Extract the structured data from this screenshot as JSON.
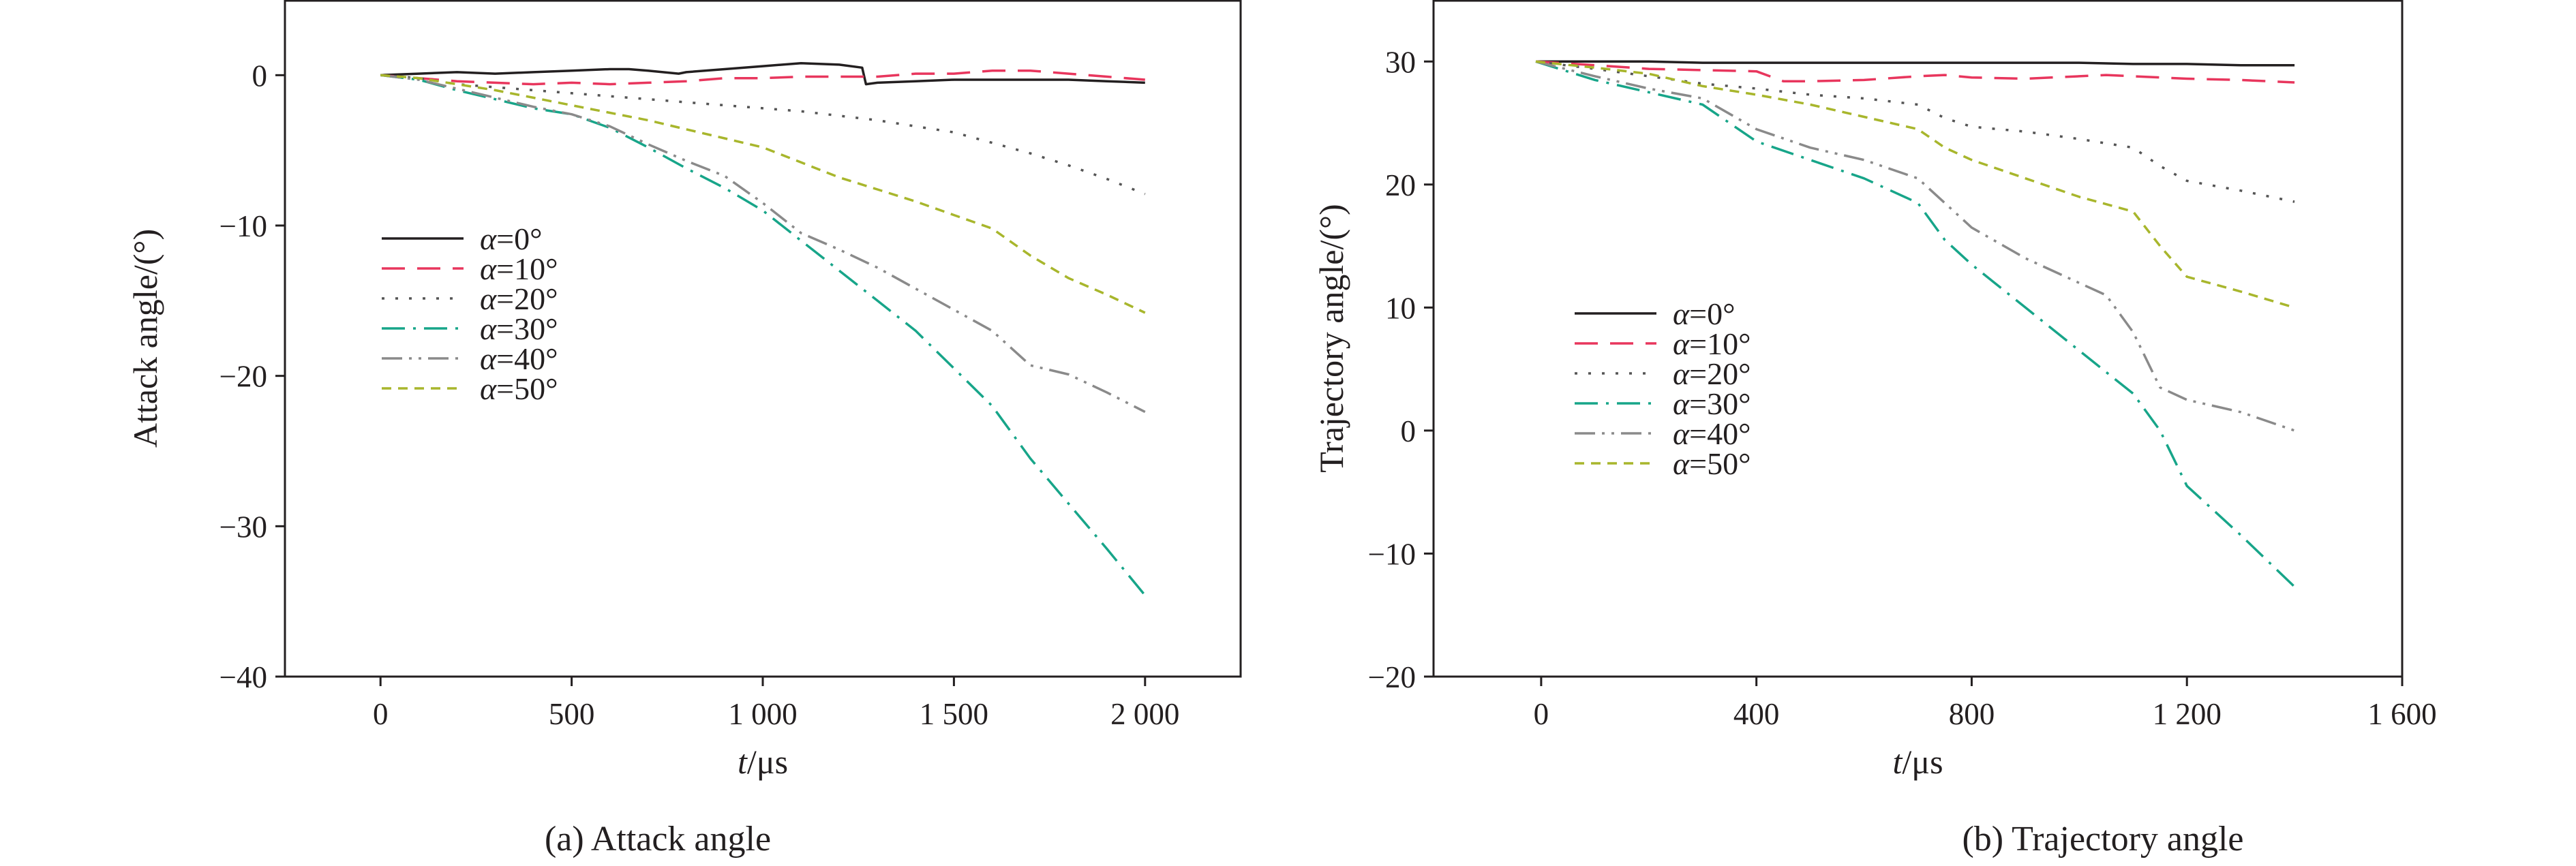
{
  "chart_data": [
    {
      "type": "line",
      "caption": "(a) Attack angle",
      "xlabel_var": "t",
      "xlabel_unit": "/μs",
      "ylabel": "Attack angle/(°)",
      "xlim": [
        -250,
        2250
      ],
      "ylim": [
        -40,
        5
      ],
      "xticks": [
        0,
        500,
        1000,
        1500,
        2000
      ],
      "xtick_labels": [
        "0",
        "500",
        "1 000",
        "1 500",
        "2 000"
      ],
      "yticks": [
        0,
        -10,
        -20,
        -30,
        -40
      ],
      "ytick_labels": [
        "0",
        "−10",
        "−20",
        "−30",
        "−40"
      ],
      "legend_position": "left",
      "series": [
        {
          "name": "α=0°",
          "sym": "α",
          "rest": "=0°",
          "color": "#231f20",
          "dash": "solid",
          "x": [
            0,
            100,
            200,
            300,
            400,
            500,
            600,
            650,
            700,
            780,
            800,
            900,
            1000,
            1100,
            1200,
            1260,
            1270,
            1300,
            1400,
            1500,
            1600,
            1700,
            1800,
            1900,
            2000
          ],
          "y": [
            0,
            0.1,
            0.2,
            0.1,
            0.2,
            0.3,
            0.4,
            0.4,
            0.3,
            0.1,
            0.2,
            0.4,
            0.6,
            0.8,
            0.7,
            0.5,
            -0.6,
            -0.5,
            -0.4,
            -0.3,
            -0.3,
            -0.3,
            -0.3,
            -0.4,
            -0.5
          ]
        },
        {
          "name": "α=10°",
          "sym": "α",
          "rest": "=10°",
          "color": "#e8365d",
          "dash": "dashed",
          "x": [
            0,
            100,
            200,
            300,
            400,
            500,
            600,
            700,
            800,
            900,
            1000,
            1100,
            1200,
            1300,
            1400,
            1500,
            1600,
            1700,
            1800,
            1900,
            2000
          ],
          "y": [
            0,
            -0.2,
            -0.4,
            -0.5,
            -0.6,
            -0.5,
            -0.6,
            -0.5,
            -0.4,
            -0.2,
            -0.2,
            -0.1,
            -0.1,
            -0.1,
            0.1,
            0.1,
            0.3,
            0.3,
            0.1,
            -0.1,
            -0.3
          ]
        },
        {
          "name": "α=20°",
          "sym": "α",
          "rest": "=20°",
          "color": "#555555",
          "dash": "dotted",
          "x": [
            0,
            100,
            200,
            300,
            400,
            500,
            600,
            700,
            800,
            900,
            1000,
            1100,
            1200,
            1300,
            1400,
            1500,
            1600,
            1700,
            1800,
            1900,
            2000
          ],
          "y": [
            0,
            -0.2,
            -0.6,
            -0.8,
            -1.0,
            -1.2,
            -1.4,
            -1.6,
            -1.8,
            -2.0,
            -2.2,
            -2.4,
            -2.7,
            -3.0,
            -3.4,
            -3.8,
            -4.5,
            -5.2,
            -6.0,
            -6.9,
            -7.9
          ]
        },
        {
          "name": "α=30°",
          "sym": "α",
          "rest": "=30°",
          "color": "#17a589",
          "dash": "dashdot",
          "x": [
            0,
            100,
            200,
            300,
            400,
            500,
            600,
            700,
            800,
            900,
            1000,
            1100,
            1200,
            1300,
            1400,
            1500,
            1600,
            1700,
            1800,
            1900,
            2000
          ],
          "y": [
            0,
            -0.3,
            -1.0,
            -1.6,
            -2.2,
            -2.6,
            -3.5,
            -4.8,
            -6.2,
            -7.5,
            -9.0,
            -11.0,
            -13.0,
            -15.0,
            -17.0,
            -19.5,
            -22.0,
            -25.5,
            -28.5,
            -31.5,
            -34.6
          ]
        },
        {
          "name": "α=40°",
          "sym": "α",
          "rest": "=40°",
          "color": "#8a8a8a",
          "dash": "dashdotdot",
          "x": [
            0,
            100,
            200,
            300,
            400,
            500,
            600,
            700,
            800,
            900,
            1000,
            1100,
            1200,
            1300,
            1400,
            1500,
            1600,
            1700,
            1800,
            1900,
            2000
          ],
          "y": [
            0,
            -0.3,
            -0.9,
            -1.5,
            -2.1,
            -2.6,
            -3.4,
            -4.6,
            -5.7,
            -6.7,
            -8.5,
            -10.5,
            -11.6,
            -12.8,
            -14.2,
            -15.6,
            -17.0,
            -19.3,
            -19.9,
            -21.1,
            -22.4
          ]
        },
        {
          "name": "α=50°",
          "sym": "α",
          "rest": "=50°",
          "color": "#a8b62c",
          "dash": "dashed-fine",
          "x": [
            0,
            100,
            200,
            300,
            400,
            500,
            600,
            700,
            800,
            900,
            1000,
            1100,
            1200,
            1300,
            1400,
            1500,
            1600,
            1700,
            1800,
            1900,
            2000
          ],
          "y": [
            0,
            -0.2,
            -0.6,
            -1.0,
            -1.5,
            -2.0,
            -2.5,
            -3.0,
            -3.6,
            -4.2,
            -4.8,
            -5.8,
            -6.8,
            -7.6,
            -8.4,
            -9.3,
            -10.2,
            -12.0,
            -13.5,
            -14.6,
            -15.8
          ]
        }
      ]
    },
    {
      "type": "line",
      "caption": "(b) Trajectory angle",
      "xlabel_var": "t",
      "xlabel_unit": "/μs",
      "ylabel": "Trajectory angle/(°)",
      "xlim": [
        -200,
        1600
      ],
      "ylim": [
        -20,
        35
      ],
      "xticks": [
        0,
        400,
        800,
        1200,
        1600
      ],
      "xtick_labels": [
        "0",
        "400",
        "800",
        "1 200",
        "1 600"
      ],
      "yticks": [
        30,
        20,
        10,
        0,
        -10,
        -20
      ],
      "ytick_labels": [
        "30",
        "20",
        "10",
        "0",
        "−10",
        "−20"
      ],
      "legend_position": "left",
      "series": [
        {
          "name": "α=0°",
          "sym": "α",
          "rest": "=0°",
          "color": "#231f20",
          "dash": "solid",
          "x": [
            -10,
            100,
            200,
            300,
            400,
            500,
            600,
            700,
            800,
            900,
            1000,
            1100,
            1200,
            1300,
            1400
          ],
          "y": [
            30,
            30,
            30,
            29.9,
            29.9,
            29.9,
            29.9,
            29.9,
            29.9,
            29.9,
            29.9,
            29.8,
            29.8,
            29.7,
            29.7
          ]
        },
        {
          "name": "α=10°",
          "sym": "α",
          "rest": "=10°",
          "color": "#e8365d",
          "dash": "dashed",
          "x": [
            -10,
            100,
            200,
            300,
            400,
            450,
            500,
            600,
            700,
            750,
            800,
            900,
            1000,
            1050,
            1100,
            1200,
            1300,
            1400
          ],
          "y": [
            30,
            29.7,
            29.4,
            29.3,
            29.2,
            28.4,
            28.4,
            28.5,
            28.8,
            28.9,
            28.7,
            28.6,
            28.8,
            28.9,
            28.8,
            28.6,
            28.5,
            28.3
          ]
        },
        {
          "name": "α=20°",
          "sym": "α",
          "rest": "=20°",
          "color": "#555555",
          "dash": "dotted",
          "x": [
            -10,
            100,
            200,
            300,
            400,
            500,
            600,
            700,
            750,
            800,
            900,
            1000,
            1100,
            1150,
            1200,
            1300,
            1400
          ],
          "y": [
            30,
            29.4,
            28.8,
            28.2,
            27.8,
            27.3,
            27.0,
            26.5,
            25.4,
            24.7,
            24.3,
            23.7,
            23.0,
            21.5,
            20.3,
            19.5,
            18.6
          ]
        },
        {
          "name": "α=30°",
          "sym": "α",
          "rest": "=30°",
          "color": "#17a589",
          "dash": "dashdot",
          "x": [
            -10,
            100,
            200,
            300,
            400,
            500,
            600,
            700,
            750,
            800,
            900,
            1000,
            1100,
            1150,
            1200,
            1300,
            1400
          ],
          "y": [
            30,
            28.5,
            27.5,
            26.5,
            23.5,
            22.0,
            20.5,
            18.5,
            15.5,
            13.5,
            10.0,
            6.5,
            3.0,
            0.0,
            -4.5,
            -8.5,
            -12.7
          ]
        },
        {
          "name": "α=40°",
          "sym": "α",
          "rest": "=40°",
          "color": "#8a8a8a",
          "dash": "dashdotdot",
          "x": [
            -10,
            100,
            200,
            300,
            400,
            500,
            600,
            700,
            750,
            800,
            900,
            1000,
            1050,
            1100,
            1150,
            1200,
            1300,
            1400
          ],
          "y": [
            30,
            28.8,
            27.8,
            27.0,
            24.5,
            23.0,
            22.0,
            20.5,
            18.5,
            16.5,
            14.0,
            12.0,
            11.0,
            8.0,
            3.5,
            2.5,
            1.5,
            0.0
          ]
        },
        {
          "name": "α=50°",
          "sym": "α",
          "rest": "=50°",
          "color": "#a8b62c",
          "dash": "dashed-fine",
          "x": [
            -10,
            100,
            200,
            300,
            400,
            500,
            600,
            700,
            750,
            800,
            900,
            1000,
            1100,
            1150,
            1200,
            1300,
            1400
          ],
          "y": [
            30,
            29.5,
            29.0,
            28.0,
            27.3,
            26.5,
            25.5,
            24.5,
            23.0,
            22.0,
            20.5,
            19.0,
            17.8,
            15.0,
            12.5,
            11.3,
            10.0
          ]
        }
      ]
    }
  ]
}
